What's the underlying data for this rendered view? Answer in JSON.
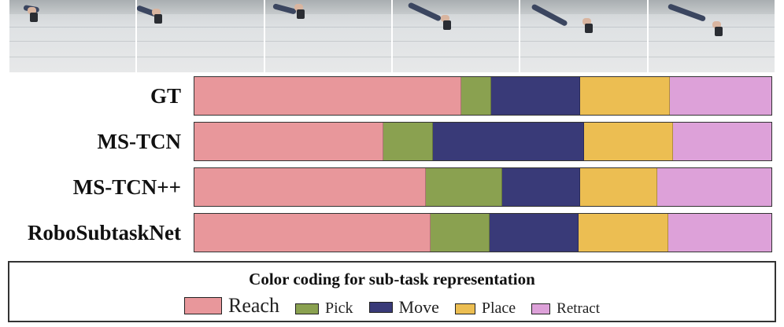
{
  "rows": [
    {
      "label": "GT",
      "segments": [
        0.463,
        0.051,
        0.155,
        0.155,
        0.176
      ]
    },
    {
      "label": "MS-TCN",
      "segments": [
        0.327,
        0.087,
        0.262,
        0.154,
        0.17
      ]
    },
    {
      "label": "MS-TCN++",
      "segments": [
        0.401,
        0.133,
        0.134,
        0.134,
        0.198
      ]
    },
    {
      "label": "RoboSubtaskNet",
      "segments": [
        0.409,
        0.102,
        0.155,
        0.155,
        0.179
      ]
    }
  ],
  "classes": [
    {
      "name": "Reach",
      "color": "#e8979b"
    },
    {
      "name": "Pick",
      "color": "#8aa150"
    },
    {
      "name": "Move",
      "color": "#393a78"
    },
    {
      "name": "Place",
      "color": "#ecbe52"
    },
    {
      "name": "Retract",
      "color": "#dda1d9"
    }
  ],
  "legend": {
    "title": "Color coding for sub-task representation"
  },
  "frames_count": 6
}
